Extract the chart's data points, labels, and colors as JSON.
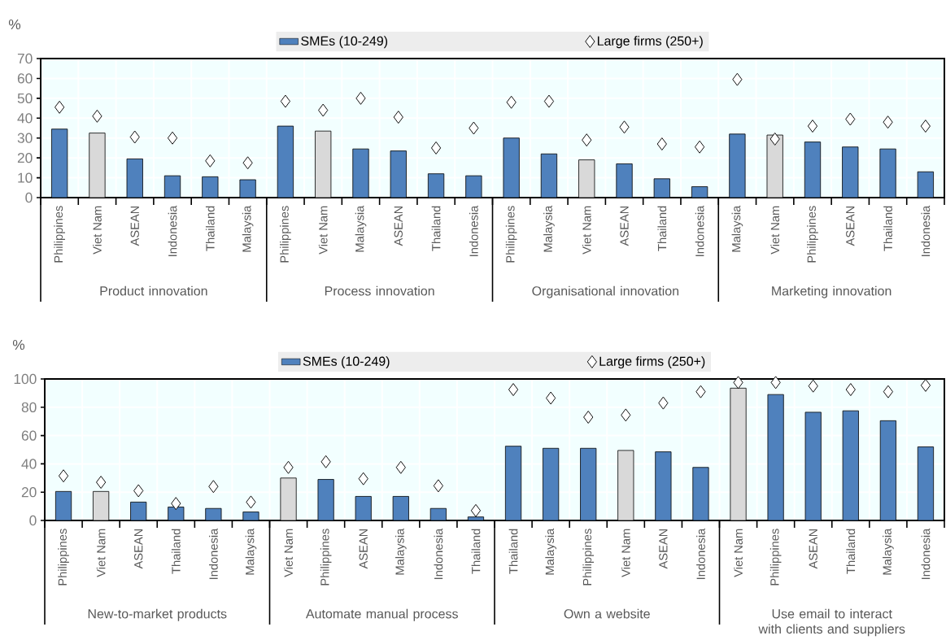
{
  "chart_data": [
    {
      "type": "bar",
      "ylabel": "%",
      "legend": "top",
      "grid": true,
      "categories": [
        "Philippines",
        "Viet Nam",
        "ASEAN",
        "Indonesia",
        "Thailand",
        "Malaysia",
        "Philippines",
        "Viet Nam",
        "Malaysia",
        "ASEAN",
        "Thailand",
        "Indonesia",
        "Philippines",
        "Malaysia",
        "Viet Nam",
        "ASEAN",
        "Thailand",
        "Indonesia",
        "Malaysia",
        "Viet Nam",
        "Philippines",
        "ASEAN",
        "Thailand",
        "Indonesia"
      ],
      "ylim": [
        0,
        70
      ],
      "yticks": [
        0,
        10,
        20,
        30,
        40,
        50,
        60,
        70
      ],
      "series": [
        {
          "name": "SMEs (10-249)",
          "colors": [
            "#4f81bd",
            "#d9d9d9",
            "#4f81bd",
            "#4f81bd",
            "#4f81bd",
            "#4f81bd",
            "#4f81bd",
            "#d9d9d9",
            "#4f81bd",
            "#4f81bd",
            "#4f81bd",
            "#4f81bd",
            "#4f81bd",
            "#4f81bd",
            "#d9d9d9",
            "#4f81bd",
            "#4f81bd",
            "#4f81bd",
            "#4f81bd",
            "#d9d9d9",
            "#4f81bd",
            "#4f81bd",
            "#4f81bd",
            "#4f81bd"
          ],
          "values": [
            34.5,
            32.5,
            19.5,
            11,
            10.5,
            9,
            36,
            33.5,
            24.5,
            23.5,
            12,
            11,
            30,
            22,
            19,
            17,
            9.5,
            5.5,
            32,
            31.5,
            28,
            25.5,
            24.5,
            13
          ]
        },
        {
          "name": "Large firms (250+)",
          "type": "scatter",
          "marker": "diamond",
          "color": "#ffffff",
          "values": [
            45.5,
            41,
            30.5,
            30,
            18.5,
            17.5,
            48.5,
            44,
            50,
            40.5,
            25,
            35,
            48,
            48.5,
            29,
            35.5,
            27,
            25.5,
            59.5,
            29.5,
            36,
            39.5,
            38,
            36
          ]
        }
      ],
      "annotations": [
        "Product innovation",
        "Process innovation",
        "Organisational innovation",
        "Marketing innovation"
      ]
    },
    {
      "type": "bar",
      "ylabel": "%",
      "legend": "top",
      "grid": true,
      "categories": [
        "Philippines",
        "Viet Nam",
        "ASEAN",
        "Thailand",
        "Indonesia",
        "Malaysia",
        "Viet Nam",
        "Philippines",
        "ASEAN",
        "Malaysia",
        "Indonesia",
        "Thailand",
        "Thailand",
        "Malaysia",
        "Philippines",
        "Viet Nam",
        "ASEAN",
        "Indonesia",
        "Viet Nam",
        "Philippines",
        "ASEAN",
        "Thailand",
        "Malaysia",
        "Indonesia"
      ],
      "ylim": [
        0,
        100
      ],
      "yticks": [
        0,
        20,
        40,
        60,
        80,
        100
      ],
      "series": [
        {
          "name": "SMEs (10-249)",
          "colors": [
            "#4f81bd",
            "#d9d9d9",
            "#4f81bd",
            "#4f81bd",
            "#4f81bd",
            "#4f81bd",
            "#d9d9d9",
            "#4f81bd",
            "#4f81bd",
            "#4f81bd",
            "#4f81bd",
            "#4f81bd",
            "#4f81bd",
            "#4f81bd",
            "#4f81bd",
            "#d9d9d9",
            "#4f81bd",
            "#4f81bd",
            "#d9d9d9",
            "#4f81bd",
            "#4f81bd",
            "#4f81bd",
            "#4f81bd",
            "#4f81bd"
          ],
          "values": [
            20.5,
            20.5,
            13,
            9.5,
            8.5,
            6,
            30,
            29,
            17,
            17,
            8.5,
            2.5,
            52.5,
            51,
            51,
            49.5,
            48.5,
            37.5,
            93.5,
            89,
            76.5,
            77.5,
            70.5,
            52
          ]
        },
        {
          "name": "Large firms (250+)",
          "type": "scatter",
          "marker": "diamond",
          "color": "#ffffff",
          "values": [
            31.5,
            27,
            21,
            12,
            24,
            13,
            37.5,
            41.5,
            29.5,
            37.5,
            24.5,
            7,
            92.5,
            86.5,
            73,
            74.5,
            83,
            91,
            97.5,
            97.5,
            95,
            92.5,
            91,
            95.5
          ]
        }
      ],
      "annotations": [
        "New-to-market products",
        "Automate manual process",
        "Own a website",
        "Use email to interact with clients and suppliers"
      ]
    }
  ]
}
